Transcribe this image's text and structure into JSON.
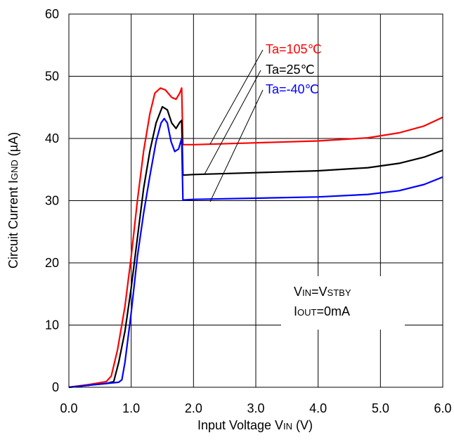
{
  "chart_data": {
    "type": "line",
    "xlabel": {
      "main": "Input Voltage V",
      "sub": "IN",
      "unit": " (V)"
    },
    "ylabel": {
      "main": "Circuit Current I",
      "sub": "GND",
      "unit": " (µA)"
    },
    "xlim": [
      0,
      6
    ],
    "ylim": [
      0,
      60
    ],
    "xticks": [
      "0.0",
      "1.0",
      "2.0",
      "3.0",
      "4.0",
      "5.0",
      "6.0"
    ],
    "yticks": [
      "0",
      "10",
      "20",
      "30",
      "40",
      "50",
      "60"
    ],
    "grid": true,
    "conditions": {
      "line1": {
        "a": "V",
        "a_sub": "IN",
        "eq": "=V",
        "b_sub": "STBY"
      },
      "line2": {
        "a": "I",
        "a_sub": "OUT",
        "rest": "=0mA"
      }
    },
    "series": [
      {
        "name": "Ta=105℃",
        "color": "#ff0000",
        "points": [
          [
            0,
            0
          ],
          [
            0.3,
            0.4
          ],
          [
            0.6,
            0.9
          ],
          [
            0.68,
            1.8
          ],
          [
            0.78,
            6
          ],
          [
            0.9,
            13
          ],
          [
            1.0,
            21
          ],
          [
            1.1,
            30
          ],
          [
            1.2,
            38
          ],
          [
            1.3,
            44
          ],
          [
            1.38,
            47.3
          ],
          [
            1.47,
            48.1
          ],
          [
            1.55,
            47.8
          ],
          [
            1.65,
            46.6
          ],
          [
            1.72,
            46.3
          ],
          [
            1.78,
            47.3
          ],
          [
            1.81,
            48.1
          ],
          [
            1.83,
            39
          ],
          [
            2.0,
            39
          ],
          [
            3.0,
            39.3
          ],
          [
            4.0,
            39.6
          ],
          [
            4.8,
            40.1
          ],
          [
            5.3,
            40.9
          ],
          [
            5.7,
            42
          ],
          [
            6.0,
            43.4
          ]
        ]
      },
      {
        "name": "Ta=25℃",
        "color": "#000000",
        "points": [
          [
            0,
            0
          ],
          [
            0.3,
            0.3
          ],
          [
            0.6,
            0.6
          ],
          [
            0.72,
            0.9
          ],
          [
            0.8,
            4
          ],
          [
            0.9,
            9
          ],
          [
            1.0,
            16
          ],
          [
            1.1,
            24
          ],
          [
            1.2,
            32
          ],
          [
            1.3,
            38
          ],
          [
            1.4,
            42.5
          ],
          [
            1.5,
            45.1
          ],
          [
            1.58,
            44.6
          ],
          [
            1.65,
            42.5
          ],
          [
            1.72,
            41.6
          ],
          [
            1.78,
            42.6
          ],
          [
            1.81,
            42.9
          ],
          [
            1.83,
            34.1
          ],
          [
            2.0,
            34.2
          ],
          [
            3.0,
            34.5
          ],
          [
            4.0,
            34.8
          ],
          [
            4.8,
            35.3
          ],
          [
            5.3,
            36
          ],
          [
            5.7,
            37
          ],
          [
            6.0,
            38.1
          ]
        ]
      },
      {
        "name": "Ta=-40℃",
        "color": "#0000ff",
        "points": [
          [
            0,
            0
          ],
          [
            0.3,
            0.3
          ],
          [
            0.6,
            0.6
          ],
          [
            0.8,
            0.8
          ],
          [
            0.85,
            1.2
          ],
          [
            0.9,
            4
          ],
          [
            1.0,
            12
          ],
          [
            1.1,
            21
          ],
          [
            1.2,
            28
          ],
          [
            1.3,
            34
          ],
          [
            1.4,
            39.5
          ],
          [
            1.48,
            42.5
          ],
          [
            1.53,
            43.2
          ],
          [
            1.58,
            42.5
          ],
          [
            1.64,
            39.5
          ],
          [
            1.7,
            37.9
          ],
          [
            1.76,
            38.3
          ],
          [
            1.81,
            40
          ],
          [
            1.83,
            30.1
          ],
          [
            2.0,
            30.2
          ],
          [
            3.0,
            30.4
          ],
          [
            4.0,
            30.6
          ],
          [
            4.8,
            31
          ],
          [
            5.3,
            31.6
          ],
          [
            5.7,
            32.6
          ],
          [
            6.0,
            33.8
          ]
        ]
      }
    ]
  }
}
